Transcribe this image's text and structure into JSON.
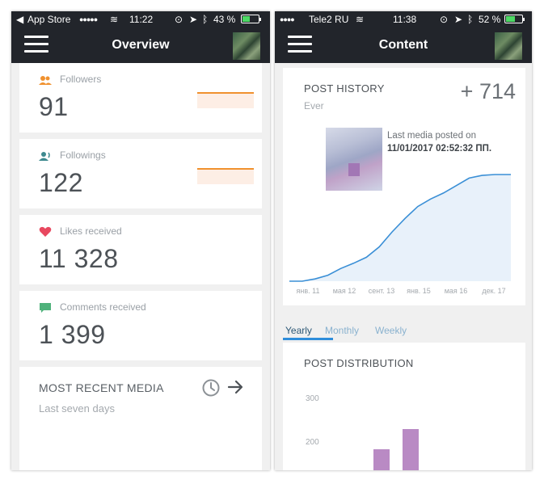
{
  "left_screen": {
    "status": {
      "carrier": "App Store",
      "signal": "●●●●●",
      "time": "11:22",
      "battery": "43 %",
      "battery_level": 0.43
    },
    "title": "Overview",
    "metrics": [
      {
        "label": "Followers",
        "value": "91",
        "icon": "followers-icon"
      },
      {
        "label": "Followings",
        "value": "122",
        "icon": "followings-icon"
      },
      {
        "label": "Likes received",
        "value": "11 328",
        "icon": "heart-icon"
      },
      {
        "label": "Comments received",
        "value": "1 399",
        "icon": "comment-icon"
      }
    ],
    "recent": {
      "title": "MOST RECENT MEDIA",
      "subtitle": "Last seven days"
    }
  },
  "right_screen": {
    "status": {
      "carrier": "Tele2 RU",
      "signal": "●●●●",
      "time": "11:38",
      "battery": "52 %",
      "battery_level": 0.52
    },
    "title": "Content",
    "post_history": {
      "title": "POST HISTORY",
      "subtitle": "Ever",
      "count": "+ 714",
      "media_caption": "Last media posted on",
      "media_date": "11/01/2017 02:52:32 ПП."
    },
    "tabs": [
      "Yearly",
      "Monthly",
      "Weekly"
    ],
    "post_distribution": {
      "title": "POST DISTRIBUTION",
      "ticks": [
        "300",
        "200"
      ]
    },
    "colors": {
      "line": "#3a8fd6",
      "area": "#e8f1fa",
      "bars": "#b98ac4",
      "accent": "#2e8ddb"
    }
  },
  "chart_data": [
    {
      "type": "area",
      "title": "POST HISTORY",
      "x_ticks": [
        "янв. 11",
        "мая 12",
        "сент. 13",
        "янв. 15",
        "мая 16",
        "дек. 17"
      ],
      "x": [
        2011.0,
        2011.4,
        2011.8,
        2012.2,
        2012.6,
        2013.0,
        2013.4,
        2013.8,
        2014.2,
        2014.6,
        2015.0,
        2015.4,
        2015.8,
        2016.2,
        2016.6,
        2017.0,
        2017.4,
        2017.9
      ],
      "series": [
        {
          "values": [
            0,
            0,
            15,
            40,
            85,
            120,
            160,
            230,
            330,
            420,
            500,
            550,
            590,
            640,
            690,
            708,
            714,
            714
          ]
        }
      ],
      "ylim": [
        0,
        714
      ],
      "grid": false
    },
    {
      "type": "bar",
      "title": "POST DISTRIBUTION",
      "y_ticks": [
        300,
        200
      ],
      "values": [
        185,
        232
      ],
      "ylim": [
        100,
        300
      ]
    }
  ]
}
